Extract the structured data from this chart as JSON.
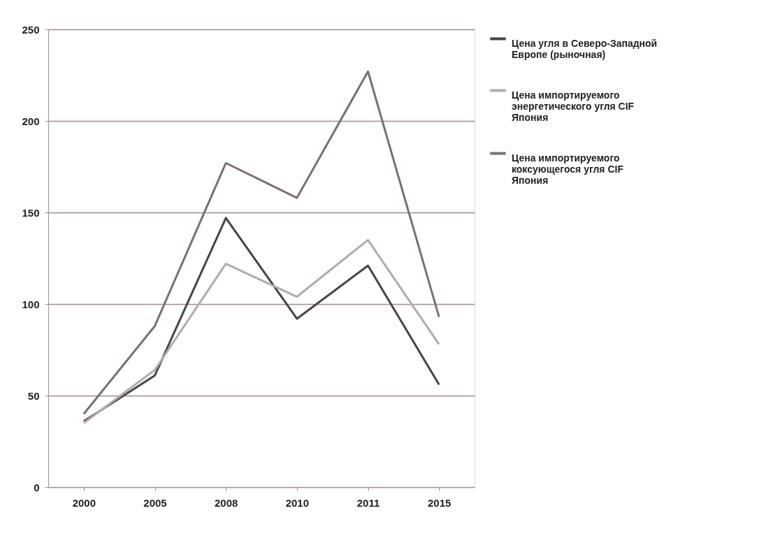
{
  "chart_data": {
    "type": "line",
    "categories": [
      "2000",
      "2005",
      "2008",
      "2010",
      "2011",
      "2015"
    ],
    "series": [
      {
        "name": "Цена угля в Северо-Западной Европе (рыночная)",
        "color": "#4a4242",
        "values": [
          36,
          61,
          147,
          92,
          121,
          56
        ]
      },
      {
        "name": "Цена импортируемого энергетического угля CIF Япония",
        "color": "#b3aba9",
        "values": [
          35,
          64,
          122,
          104,
          135,
          78
        ]
      },
      {
        "name": "Цена импортируемого коксующегося угля CIF Япония",
        "color": "#7b6f6d",
        "values": [
          40,
          88,
          177,
          158,
          227,
          93
        ]
      }
    ],
    "ylim": [
      0,
      250
    ],
    "yticks": [
      0,
      50,
      100,
      150,
      200,
      250
    ],
    "grid": "y",
    "legend": "right",
    "marker": "none",
    "line_style": "solid"
  }
}
